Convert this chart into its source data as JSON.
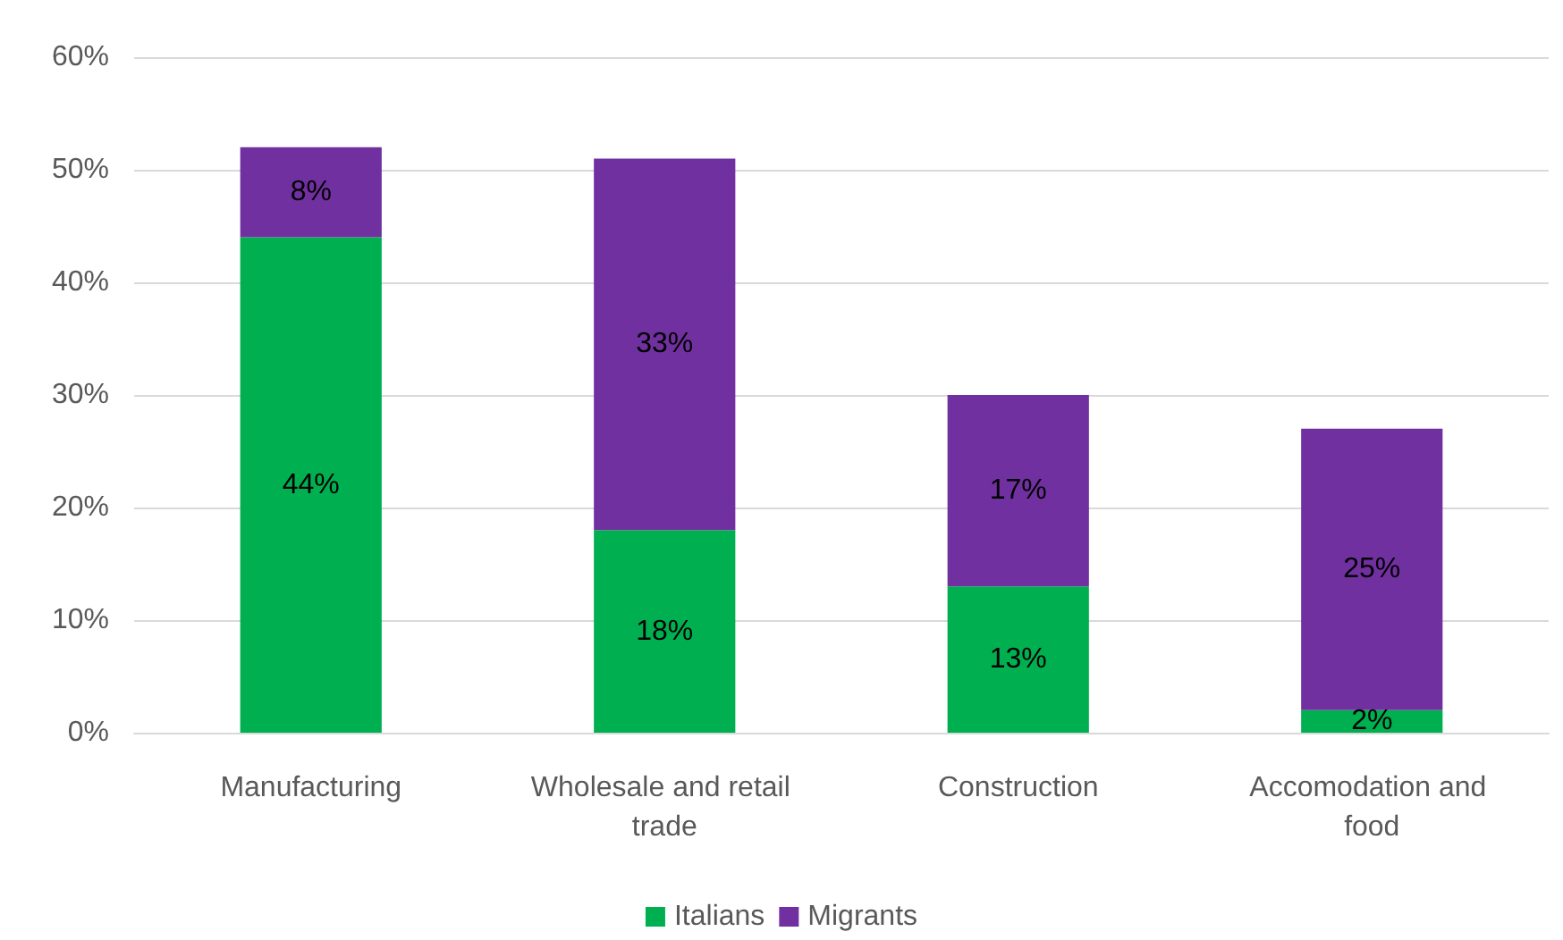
{
  "chart_data": {
    "type": "bar",
    "stacked": true,
    "categories": [
      "Manufacturing",
      "Wholesale and retail trade",
      "Construction",
      "Accomodation and food"
    ],
    "series": [
      {
        "name": "Italians",
        "color": "#00b050",
        "values": [
          44,
          18,
          13,
          2
        ]
      },
      {
        "name": "Migrants",
        "color": "#7030a0",
        "values": [
          8,
          33,
          17,
          25
        ]
      }
    ],
    "ylim": [
      0,
      60
    ],
    "yticks": [
      {
        "value": 0,
        "label": "0%"
      },
      {
        "value": 10,
        "label": "10%"
      },
      {
        "value": 20,
        "label": "20%"
      },
      {
        "value": 30,
        "label": "30%"
      },
      {
        "value": 40,
        "label": "40%"
      },
      {
        "value": 50,
        "label": "50%"
      },
      {
        "value": 60,
        "label": "60%"
      }
    ],
    "grid": "y",
    "legend": "bottom",
    "value_labels": [
      [
        "44%",
        "18%",
        "13%",
        "2%"
      ],
      [
        "8%",
        "33%",
        "17%",
        "25%"
      ]
    ]
  }
}
